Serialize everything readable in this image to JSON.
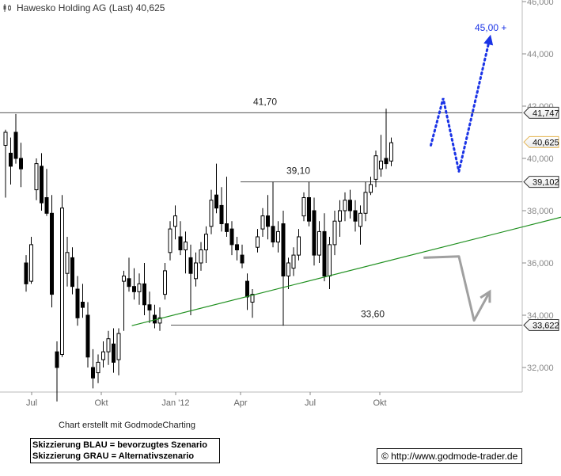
{
  "header": {
    "title": "Hawesko Holding AG (Last) 40,625"
  },
  "footer": {
    "credit": "Chart erstellt mit GodmodeCharting",
    "legend_blue": "Skizzierung BLAU = bevorzugtes Szenario",
    "legend_grey": "Skizzierung GRAU = Alternativszenario",
    "url": "© http://www.godmode-trader.de"
  },
  "chart_data": {
    "type": "candlestick",
    "title": "Hawesko Holding AG (Last) 40,625",
    "x_ticks": [
      "Jul",
      "Okt",
      "Jan '12",
      "Apr",
      "Jul",
      "Okt"
    ],
    "y_ticks": [
      "32,000",
      "34,000",
      "36,000",
      "38,000",
      "40,000",
      "42,000",
      "44,000",
      "46,000"
    ],
    "y_tick_values": [
      32,
      34,
      36,
      38,
      40,
      42,
      44,
      46
    ],
    "ylim": [
      30.5,
      46.2
    ],
    "grid": false,
    "colors": {
      "candle": "#000000",
      "support_line": "#555555",
      "trend_line": "#1e8f1e",
      "blue_scenario": "#1a33e6",
      "grey_scenario": "#a0a0a0",
      "current_price_border": "#e6b95c"
    },
    "levels": [
      {
        "label": "41,70",
        "value": 41.747,
        "marker": "41,747"
      },
      {
        "label": "39,10",
        "value": 39.102,
        "marker": "39,102"
      },
      {
        "label": "33,60",
        "value": 33.622,
        "marker": "33,622"
      }
    ],
    "current_price": {
      "value": 40.625,
      "marker": "40,625"
    },
    "target": {
      "value": 45.0,
      "label": "45,00 +"
    },
    "trend_line": [
      {
        "x": 0.235,
        "y": 33.6
      },
      {
        "x": 1.0,
        "y": 37.75
      }
    ],
    "blue_scenario": [
      {
        "x": 0.768,
        "y": 40.5
      },
      {
        "x": 0.79,
        "y": 42.3
      },
      {
        "x": 0.818,
        "y": 39.5
      },
      {
        "x": 0.872,
        "y": 44.5
      }
    ],
    "grey_scenario": [
      {
        "x": 0.755,
        "y": 36.2
      },
      {
        "x": 0.818,
        "y": 36.25
      },
      {
        "x": 0.845,
        "y": 33.8
      },
      {
        "x": 0.873,
        "y": 34.9
      }
    ],
    "candles": [
      {
        "o": 40.5,
        "h": 41.1,
        "l": 38.5,
        "c": 41.0
      },
      {
        "o": 40.2,
        "h": 40.8,
        "l": 39.0,
        "c": 39.7
      },
      {
        "o": 41.0,
        "h": 41.7,
        "l": 39.8,
        "c": 40.0
      },
      {
        "o": 40.0,
        "h": 40.6,
        "l": 38.9,
        "c": 39.6
      },
      {
        "o": 36.0,
        "h": 36.3,
        "l": 34.9,
        "c": 35.2
      },
      {
        "o": 35.3,
        "h": 37.0,
        "l": 35.2,
        "c": 36.7
      },
      {
        "o": 38.8,
        "h": 40.0,
        "l": 38.4,
        "c": 39.8
      },
      {
        "o": 39.7,
        "h": 40.2,
        "l": 38.0,
        "c": 38.3
      },
      {
        "o": 38.5,
        "h": 39.6,
        "l": 37.8,
        "c": 37.9
      },
      {
        "o": 37.9,
        "h": 38.6,
        "l": 34.3,
        "c": 34.8
      },
      {
        "o": 32.6,
        "h": 33.0,
        "l": 30.7,
        "c": 32.0
      },
      {
        "o": 32.5,
        "h": 38.6,
        "l": 32.4,
        "c": 38.1
      },
      {
        "o": 35.6,
        "h": 37.0,
        "l": 35.1,
        "c": 36.4
      },
      {
        "o": 36.2,
        "h": 36.6,
        "l": 34.8,
        "c": 35.1
      },
      {
        "o": 35.0,
        "h": 35.5,
        "l": 33.6,
        "c": 33.9
      },
      {
        "o": 34.5,
        "h": 35.2,
        "l": 33.9,
        "c": 34.3
      },
      {
        "o": 34.0,
        "h": 34.5,
        "l": 32.0,
        "c": 32.4
      },
      {
        "o": 32.0,
        "h": 32.7,
        "l": 31.2,
        "c": 31.6
      },
      {
        "o": 31.8,
        "h": 32.5,
        "l": 31.4,
        "c": 32.2
      },
      {
        "o": 32.3,
        "h": 33.0,
        "l": 32.0,
        "c": 32.6
      },
      {
        "o": 32.6,
        "h": 33.4,
        "l": 32.1,
        "c": 33.1
      },
      {
        "o": 32.9,
        "h": 33.5,
        "l": 31.8,
        "c": 32.2
      },
      {
        "o": 32.3,
        "h": 33.5,
        "l": 31.7,
        "c": 33.3
      },
      {
        "o": 35.3,
        "h": 35.7,
        "l": 33.4,
        "c": 35.5
      },
      {
        "o": 35.4,
        "h": 36.2,
        "l": 34.9,
        "c": 35.1
      },
      {
        "o": 35.1,
        "h": 35.8,
        "l": 34.6,
        "c": 34.9
      },
      {
        "o": 34.9,
        "h": 35.6,
        "l": 34.4,
        "c": 35.2
      },
      {
        "o": 35.2,
        "h": 36.0,
        "l": 34.0,
        "c": 34.4
      },
      {
        "o": 34.4,
        "h": 34.9,
        "l": 33.7,
        "c": 34.2
      },
      {
        "o": 34.0,
        "h": 34.4,
        "l": 33.5,
        "c": 33.7
      },
      {
        "o": 33.7,
        "h": 34.3,
        "l": 33.4,
        "c": 33.9
      },
      {
        "o": 34.8,
        "h": 36.0,
        "l": 34.6,
        "c": 35.7
      },
      {
        "o": 36.4,
        "h": 37.6,
        "l": 36.1,
        "c": 37.3
      },
      {
        "o": 37.4,
        "h": 38.2,
        "l": 36.9,
        "c": 37.8
      },
      {
        "o": 37.0,
        "h": 37.6,
        "l": 36.3,
        "c": 36.5
      },
      {
        "o": 36.5,
        "h": 37.2,
        "l": 35.6,
        "c": 36.8
      },
      {
        "o": 36.2,
        "h": 36.7,
        "l": 34.0,
        "c": 35.6
      },
      {
        "o": 35.4,
        "h": 36.4,
        "l": 35.1,
        "c": 36.0
      },
      {
        "o": 36.0,
        "h": 36.8,
        "l": 35.7,
        "c": 36.5
      },
      {
        "o": 36.5,
        "h": 37.4,
        "l": 36.0,
        "c": 37.1
      },
      {
        "o": 37.4,
        "h": 38.8,
        "l": 37.1,
        "c": 38.4
      },
      {
        "o": 38.6,
        "h": 39.8,
        "l": 37.9,
        "c": 38.1
      },
      {
        "o": 38.2,
        "h": 38.9,
        "l": 37.2,
        "c": 37.5
      },
      {
        "o": 37.5,
        "h": 39.3,
        "l": 37.0,
        "c": 37.2
      },
      {
        "o": 37.3,
        "h": 37.6,
        "l": 36.3,
        "c": 36.7
      },
      {
        "o": 36.7,
        "h": 37.0,
        "l": 36.1,
        "c": 36.5
      },
      {
        "o": 36.3,
        "h": 36.7,
        "l": 35.8,
        "c": 36.0
      },
      {
        "o": 35.3,
        "h": 35.6,
        "l": 34.2,
        "c": 34.7
      },
      {
        "o": 34.5,
        "h": 35.0,
        "l": 33.9,
        "c": 34.8
      },
      {
        "o": 36.6,
        "h": 37.3,
        "l": 36.4,
        "c": 37.0
      },
      {
        "o": 37.3,
        "h": 38.1,
        "l": 37.0,
        "c": 37.8
      },
      {
        "o": 37.8,
        "h": 38.6,
        "l": 36.9,
        "c": 37.4
      },
      {
        "o": 37.4,
        "h": 39.1,
        "l": 36.6,
        "c": 36.8
      },
      {
        "o": 36.8,
        "h": 37.6,
        "l": 36.4,
        "c": 37.2
      },
      {
        "o": 37.5,
        "h": 38.0,
        "l": 33.6,
        "c": 35.5
      },
      {
        "o": 35.5,
        "h": 36.2,
        "l": 35.0,
        "c": 36.0
      },
      {
        "o": 35.8,
        "h": 36.6,
        "l": 35.5,
        "c": 36.3
      },
      {
        "o": 36.3,
        "h": 37.3,
        "l": 36.1,
        "c": 37.0
      },
      {
        "o": 37.8,
        "h": 38.7,
        "l": 37.6,
        "c": 38.5
      },
      {
        "o": 38.5,
        "h": 39.1,
        "l": 37.4,
        "c": 37.6
      },
      {
        "o": 38.0,
        "h": 38.5,
        "l": 35.9,
        "c": 36.3
      },
      {
        "o": 36.3,
        "h": 37.6,
        "l": 36.0,
        "c": 37.2
      },
      {
        "o": 37.2,
        "h": 37.9,
        "l": 35.3,
        "c": 35.5
      },
      {
        "o": 35.5,
        "h": 37.0,
        "l": 35.0,
        "c": 36.7
      },
      {
        "o": 36.7,
        "h": 38.0,
        "l": 36.3,
        "c": 37.6
      },
      {
        "o": 37.6,
        "h": 38.4,
        "l": 37.0,
        "c": 38.0
      },
      {
        "o": 38.0,
        "h": 38.7,
        "l": 37.6,
        "c": 38.4
      },
      {
        "o": 38.4,
        "h": 38.8,
        "l": 37.7,
        "c": 38.0
      },
      {
        "o": 38.0,
        "h": 38.4,
        "l": 37.2,
        "c": 37.6
      },
      {
        "o": 37.4,
        "h": 38.2,
        "l": 36.7,
        "c": 37.9
      },
      {
        "o": 37.9,
        "h": 39.1,
        "l": 37.6,
        "c": 38.7
      },
      {
        "o": 38.7,
        "h": 39.3,
        "l": 38.6,
        "c": 39.0
      },
      {
        "o": 39.2,
        "h": 40.3,
        "l": 38.9,
        "c": 40.1
      },
      {
        "o": 39.6,
        "h": 40.9,
        "l": 39.3,
        "c": 39.9
      },
      {
        "o": 40.0,
        "h": 41.9,
        "l": 39.6,
        "c": 39.8
      },
      {
        "o": 39.9,
        "h": 40.8,
        "l": 39.7,
        "c": 40.6
      }
    ]
  }
}
